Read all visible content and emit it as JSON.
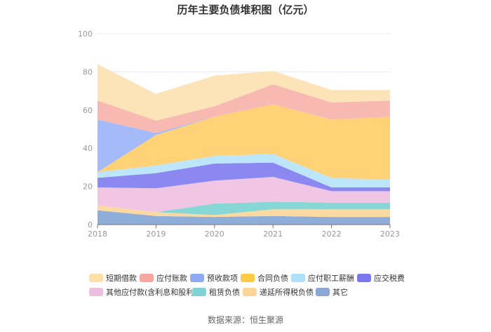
{
  "chart_data": {
    "type": "area",
    "stacked": true,
    "title": "历年主要负债堆积图（亿元）",
    "xlabel": "",
    "ylabel": "",
    "categories": [
      "2018",
      "2019",
      "2020",
      "2021",
      "2022",
      "2023"
    ],
    "ylim": [
      0,
      100
    ],
    "yticks": [
      0,
      20,
      40,
      60,
      80,
      100
    ],
    "grid": true,
    "legend_position": "bottom",
    "series": [
      {
        "name": "其它",
        "color": "#8fadd9",
        "values": [
          7.5,
          4.5,
          4,
          4.5,
          4,
          4
        ]
      },
      {
        "name": "递延所得税负债",
        "color": "#fcd9a0",
        "values": [
          2.5,
          2,
          1,
          3.5,
          4,
          4
        ]
      },
      {
        "name": "租赁负债",
        "color": "#86d7d6",
        "values": [
          0,
          0,
          6,
          4,
          3.5,
          3.5
        ]
      },
      {
        "name": "其他应付款(含利息和股利)",
        "color": "#f0c6e4",
        "values": [
          9.5,
          12.5,
          12,
          13,
          6,
          6
        ]
      },
      {
        "name": "应交税费",
        "color": "#8b88f2",
        "values": [
          5,
          8,
          9,
          7.5,
          2,
          2
        ]
      },
      {
        "name": "应付职工薪酬",
        "color": "#bde6fb",
        "values": [
          3,
          4,
          4,
          4.5,
          5,
          4
        ]
      },
      {
        "name": "合同负债",
        "color": "#ffd277",
        "values": [
          0,
          16,
          20.5,
          26,
          30.5,
          33
        ]
      },
      {
        "name": "预收款项",
        "color": "#a5baf8",
        "values": [
          27.5,
          1,
          0,
          0,
          0,
          0
        ]
      },
      {
        "name": "应付账款",
        "color": "#f9b9b3",
        "values": [
          10,
          6.5,
          5.5,
          10.5,
          9,
          8.5
        ]
      },
      {
        "name": "短期借款",
        "color": "#fde4b8",
        "values": [
          19,
          14,
          16,
          7,
          6.5,
          5.5
        ]
      }
    ]
  },
  "legend": {
    "row1": [
      "短期借款",
      "应付账款",
      "预收款项",
      "合同负债",
      "应付职工薪酬",
      "应交税费"
    ],
    "row2": [
      "其他应付款(含利息和股利)",
      "租赁负债",
      "递延所得税负债",
      "其它"
    ]
  },
  "legend_colors": {
    "短期借款": "#fde0a8",
    "应付账款": "#f8a79f",
    "预收款项": "#8ea9f6",
    "合同负债": "#fec945",
    "应付职工薪酬": "#aee0fa",
    "应交税费": "#7b78ef",
    "其他应付款(含利息和股利)": "#eabfe0",
    "租赁负债": "#80d3d2",
    "递延所得税负债": "#fcd699",
    "其它": "#8aa8d6"
  },
  "source": "数据来源：恒生聚源"
}
